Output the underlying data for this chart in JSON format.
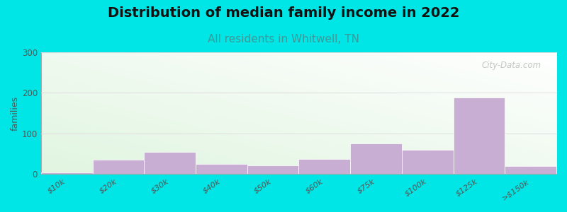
{
  "title": "Distribution of median family income in 2022",
  "subtitle": "All residents in Whitwell, TN",
  "ylabel": "families",
  "categories": [
    "$10k",
    "$20k",
    "$30k",
    "$40k",
    "$50k",
    "$60k",
    "$75k",
    "$100k",
    "$125k",
    ">$150k"
  ],
  "values": [
    5,
    35,
    55,
    25,
    22,
    38,
    75,
    60,
    188,
    20
  ],
  "bar_color": "#c9aed4",
  "background_color": "#00e5e5",
  "title_fontsize": 14,
  "subtitle_fontsize": 11,
  "subtitle_color": "#3a9a9a",
  "ylabel_color": "#555555",
  "tick_color": "#555555",
  "ylim": [
    0,
    300
  ],
  "yticks": [
    0,
    100,
    200,
    300
  ],
  "watermark_text": "City-Data.com",
  "watermark_color": "#bbbbbb",
  "grid_color": "#dddddd"
}
